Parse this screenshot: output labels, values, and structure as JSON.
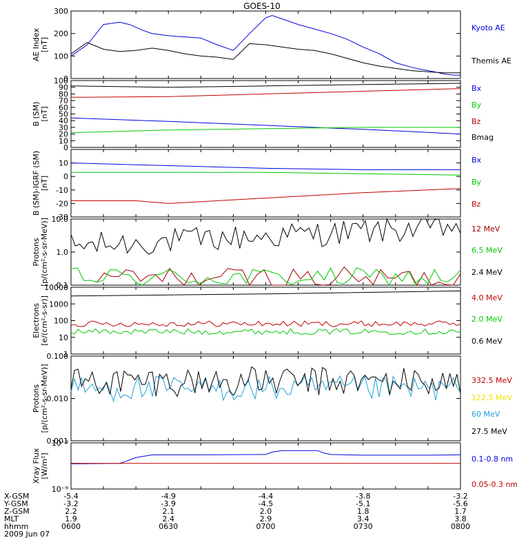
{
  "title": "GOES-10",
  "colors": {
    "black": "#000000",
    "blue": "#0000e0",
    "red": "#c00000",
    "green": "#00c800",
    "darkred": "#a00000",
    "cyan": "#1ea0d8",
    "yellow": "#f0e000"
  },
  "chart_data": [
    {
      "type": "line",
      "id": "ae",
      "ylabel": [
        "AE Index",
        "[nT]"
      ],
      "ylim": [
        0,
        300
      ],
      "scale": "linear",
      "yticks": [
        0,
        100,
        200,
        300
      ],
      "ytick_labels": [
        "0",
        "100",
        "200",
        "300"
      ],
      "series": [
        {
          "name": "Kyoto AE",
          "color": "blue",
          "x": [
            0,
            5,
            10,
            15,
            18,
            22,
            25,
            30,
            35,
            40,
            45,
            50,
            55,
            60,
            62,
            65,
            70,
            75,
            80,
            85,
            90,
            95,
            100,
            105,
            108,
            112,
            115,
            118,
            120
          ],
          "values": [
            100,
            150,
            240,
            250,
            240,
            215,
            200,
            190,
            185,
            180,
            150,
            125,
            200,
            270,
            280,
            265,
            240,
            220,
            200,
            175,
            140,
            110,
            70,
            50,
            40,
            30,
            20,
            15,
            15
          ]
        },
        {
          "name": "Themis AE",
          "color": "black",
          "x": [
            0,
            5,
            10,
            15,
            20,
            25,
            30,
            35,
            40,
            45,
            50,
            55,
            60,
            65,
            70,
            75,
            80,
            85,
            90,
            95,
            100,
            105,
            110,
            115,
            120
          ],
          "values": [
            110,
            160,
            130,
            120,
            125,
            135,
            125,
            110,
            100,
            95,
            85,
            155,
            150,
            140,
            130,
            125,
            110,
            90,
            70,
            55,
            45,
            35,
            30,
            25,
            25
          ]
        }
      ],
      "legend": [
        "Kyoto AE",
        "Themis AE"
      ]
    },
    {
      "type": "line",
      "id": "bsm",
      "ylabel": [
        "B (SM)",
        "[nT]"
      ],
      "ylim": [
        0,
        100
      ],
      "scale": "linear",
      "yticks": [
        0,
        10,
        20,
        30,
        40,
        50,
        60,
        70,
        80,
        90,
        100
      ],
      "ytick_labels": [
        "0",
        "10",
        "20",
        "30",
        "40",
        "50",
        "60",
        "70",
        "80",
        "90",
        "100"
      ],
      "series": [
        {
          "name": "Bx",
          "color": "blue",
          "x": [
            0,
            30,
            60,
            90,
            120
          ],
          "values": [
            44,
            39,
            33,
            27,
            20
          ]
        },
        {
          "name": "By",
          "color": "green",
          "x": [
            0,
            30,
            60,
            90,
            120
          ],
          "values": [
            22,
            26,
            28,
            30,
            30
          ]
        },
        {
          "name": "Bz",
          "color": "red",
          "x": [
            0,
            30,
            60,
            90,
            120
          ],
          "values": [
            75,
            76,
            80,
            84,
            88
          ]
        },
        {
          "name": "Bmag",
          "color": "black",
          "x": [
            0,
            30,
            60,
            90,
            120
          ],
          "values": [
            92,
            90,
            92,
            94,
            96
          ]
        }
      ],
      "legend": [
        "Bx",
        "By",
        "Bz",
        "Bmag"
      ]
    },
    {
      "type": "line",
      "id": "bigrf",
      "ylabel": [
        "B (SM)-IGRF (SM)",
        "[nT]"
      ],
      "ylim": [
        -30,
        20
      ],
      "scale": "linear",
      "yticks": [
        -30,
        -20,
        -10,
        0,
        10,
        20
      ],
      "ytick_labels": [
        "-30",
        "-20",
        "-10",
        "0",
        "10",
        ""
      ],
      "series": [
        {
          "name": "Bx",
          "color": "blue",
          "x": [
            0,
            30,
            60,
            90,
            120
          ],
          "values": [
            10,
            8,
            6,
            5,
            5
          ]
        },
        {
          "name": "By",
          "color": "green",
          "x": [
            0,
            30,
            60,
            90,
            120
          ],
          "values": [
            3,
            3,
            3,
            2,
            1
          ]
        },
        {
          "name": "Bz",
          "color": "red",
          "x": [
            0,
            20,
            30,
            60,
            90,
            120
          ],
          "values": [
            -18,
            -18,
            -20,
            -16,
            -12,
            -9
          ]
        }
      ],
      "legend": [
        "Bx",
        "By",
        "Bz"
      ]
    },
    {
      "type": "line",
      "id": "protons1",
      "ylabel": [
        "Protons",
        "[p/(cm²-s-sr-MeV)]"
      ],
      "ylim": [
        0.1,
        10
      ],
      "scale": "log",
      "yticks": [
        0.1,
        1,
        10
      ],
      "ytick_labels": [
        "0.1",
        "1.0",
        "10.0"
      ],
      "series": [
        {
          "name": "12 MeV",
          "color": "darkred",
          "x": [],
          "values": []
        },
        {
          "name": "6.5 MeV",
          "color": "green",
          "x": [],
          "values": []
        },
        {
          "name": "2.4 MeV",
          "color": "black",
          "x": [],
          "values": []
        }
      ],
      "legend": [
        "12 MeV",
        "6.5 MeV",
        "2.4 MeV"
      ]
    },
    {
      "type": "line",
      "id": "electrons",
      "ylabel": [
        "Electrons",
        "[e/(cm²-s-sr)]"
      ],
      "ylim": [
        1,
        10000
      ],
      "scale": "log",
      "yticks": [
        1,
        10,
        100,
        1000,
        10000
      ],
      "ytick_labels": [
        "1",
        "10",
        "100",
        "1000",
        "10000"
      ],
      "series": [
        {
          "name": "4.0 MeV",
          "color": "red",
          "x": [],
          "values": []
        },
        {
          "name": "2.0 MeV",
          "color": "green",
          "x": [],
          "values": []
        },
        {
          "name": "0.6 MeV",
          "color": "black",
          "x": [
            0,
            60,
            120
          ],
          "values": [
            3000,
            4000,
            6000
          ]
        }
      ],
      "legend": [
        "4.0 MeV",
        "2.0 MeV",
        "0.6 MeV"
      ]
    },
    {
      "type": "line",
      "id": "protons2",
      "ylabel": [
        "Protons",
        "[p/(cm²-s-sr-MeV)]"
      ],
      "ylim": [
        0.001,
        0.1
      ],
      "scale": "log",
      "yticks": [
        0.001,
        0.01,
        0.1
      ],
      "ytick_labels": [
        "0.001",
        "0.010",
        "0.100"
      ],
      "series": [
        {
          "name": "332.5 MeV",
          "color": "red",
          "x": [],
          "values": []
        },
        {
          "name": "122.5 MeV",
          "color": "yellow",
          "x": [],
          "values": []
        },
        {
          "name": "60 MeV",
          "color": "cyan",
          "x": [],
          "values": []
        },
        {
          "name": "27.5 MeV",
          "color": "black",
          "x": [],
          "values": []
        }
      ],
      "legend": [
        "332.5 MeV",
        "122.5 MeV",
        "60 MeV",
        "27.5 MeV"
      ]
    },
    {
      "type": "line",
      "id": "xray",
      "ylabel": [
        "Xray Flux",
        "[W/m²]"
      ],
      "ylim": [
        1e-09,
        1e-08
      ],
      "scale": "log",
      "yticks": [
        1e-09,
        1e-08
      ],
      "ytick_labels": [
        "10⁻⁹",
        "10⁻⁸"
      ],
      "series": [
        {
          "name": "0.1-0.8 nm",
          "color": "blue",
          "x": [
            0,
            15,
            17,
            20,
            23,
            25,
            40,
            60,
            62,
            65,
            70,
            76,
            78,
            80,
            85,
            90,
            100,
            110,
            120
          ],
          "values": [
            3.5e-09,
            3.6e-09,
            4e-09,
            4.8e-09,
            5.2e-09,
            5.5e-09,
            5.5e-09,
            5.6e-09,
            6.3e-09,
            6.8e-09,
            6.8e-09,
            6.8e-09,
            6e-09,
            5.6e-09,
            5.5e-09,
            5.4e-09,
            5.4e-09,
            5.4e-09,
            5.5e-09
          ]
        },
        {
          "name": "0.05-0.3 nm",
          "color": "red",
          "x": [
            0,
            120
          ],
          "values": [
            3.6e-09,
            3.6e-09
          ]
        }
      ],
      "legend": [
        "0.1-0.8 nm",
        "0.05-0.3 nm"
      ]
    }
  ],
  "x_axis": {
    "rows": [
      {
        "label": "X-GSM",
        "values": [
          "-5.4",
          "-4.9",
          "-4.4",
          "-3.8",
          "-3.2"
        ]
      },
      {
        "label": "Y-GSM",
        "values": [
          "-3.2",
          "-3.9",
          "-4.5",
          "-5.1",
          "-5.6"
        ]
      },
      {
        "label": "Z-GSM",
        "values": [
          "2.2",
          "2.1",
          "2.0",
          "1.8",
          "1.7"
        ]
      },
      {
        "label": "MLT",
        "values": [
          "1.9",
          "2.4",
          "2.9",
          "3.4",
          "3.8"
        ]
      },
      {
        "label": "hhmm",
        "values": [
          "0600",
          "0630",
          "0700",
          "0730",
          "0800"
        ]
      }
    ],
    "date": "2009 Jun 07",
    "ticks_min": [
      0,
      30,
      60,
      90,
      120
    ]
  }
}
